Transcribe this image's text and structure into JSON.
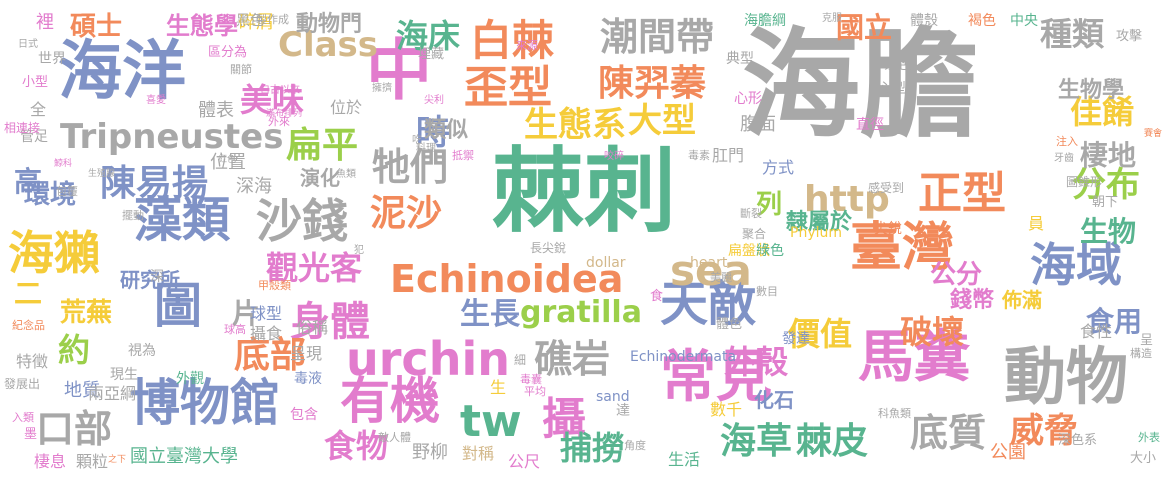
{
  "palette": {
    "gray": "#a8a8a8",
    "teal": "#58b48f",
    "pink": "#e27ccd",
    "blue": "#7f92c6",
    "orange": "#f28a5b",
    "green": "#9bcf4a",
    "yellow": "#f5cc3a",
    "tan": "#d3b88a"
  },
  "words": [
    {
      "text": "海膽",
      "size": 118,
      "color": "gray"
    },
    {
      "text": "棘刺",
      "size": 92,
      "color": "teal"
    },
    {
      "text": "海洋",
      "size": 64,
      "color": "blue"
    },
    {
      "text": "中",
      "size": 66,
      "color": "pink"
    },
    {
      "text": "臺灣",
      "size": 52,
      "color": "orange"
    },
    {
      "text": "動物",
      "size": 62,
      "color": "gray"
    },
    {
      "text": "馬糞",
      "size": 56,
      "color": "pink"
    },
    {
      "text": "常見",
      "size": 56,
      "color": "pink"
    },
    {
      "text": "博物館",
      "size": 50,
      "color": "blue"
    },
    {
      "text": "有機",
      "size": 50,
      "color": "pink"
    },
    {
      "text": "urchin",
      "size": 46,
      "color": "pink"
    },
    {
      "text": "藻類",
      "size": 48,
      "color": "blue"
    },
    {
      "text": "海獺",
      "size": 46,
      "color": "yellow"
    },
    {
      "text": "沙錢",
      "size": 46,
      "color": "gray"
    },
    {
      "text": "圖",
      "size": 48,
      "color": "blue"
    },
    {
      "text": "天敵",
      "size": 48,
      "color": "blue"
    },
    {
      "text": "海域",
      "size": 46,
      "color": "blue"
    },
    {
      "text": "正型",
      "size": 44,
      "color": "orange"
    },
    {
      "text": "歪型",
      "size": 44,
      "color": "orange"
    },
    {
      "text": "白棘",
      "size": 42,
      "color": "orange"
    },
    {
      "text": "tw",
      "size": 44,
      "color": "teal"
    },
    {
      "text": "攝",
      "size": 44,
      "color": "pink"
    },
    {
      "text": "sea",
      "size": 42,
      "color": "tan"
    },
    {
      "text": "Echinoidea",
      "size": 38,
      "color": "orange"
    },
    {
      "text": "潮間帶",
      "size": 38,
      "color": "gray"
    },
    {
      "text": "http",
      "size": 36,
      "color": "tan"
    },
    {
      "text": "陳羿蓁",
      "size": 36,
      "color": "orange"
    },
    {
      "text": "陳易揚",
      "size": 36,
      "color": "blue"
    },
    {
      "text": "身體",
      "size": 40,
      "color": "pink"
    },
    {
      "text": "Tripneustes",
      "size": 34,
      "color": "gray"
    },
    {
      "text": "Class",
      "size": 34,
      "color": "tan"
    },
    {
      "text": "扁平",
      "size": 36,
      "color": "green"
    },
    {
      "text": "底部",
      "size": 36,
      "color": "orange"
    },
    {
      "text": "泥沙",
      "size": 36,
      "color": "orange"
    },
    {
      "text": "生態系",
      "size": 34,
      "color": "yellow"
    },
    {
      "text": "大型",
      "size": 34,
      "color": "yellow"
    },
    {
      "text": "牠們",
      "size": 38,
      "color": "gray"
    },
    {
      "text": "礁岩",
      "size": 38,
      "color": "gray"
    },
    {
      "text": "底質",
      "size": 38,
      "color": "gray"
    },
    {
      "text": "海草",
      "size": 36,
      "color": "teal"
    },
    {
      "text": "棘皮",
      "size": 36,
      "color": "teal"
    },
    {
      "text": "威脅",
      "size": 34,
      "color": "orange"
    },
    {
      "text": "分布",
      "size": 34,
      "color": "green"
    },
    {
      "text": "口部",
      "size": 38,
      "color": "gray"
    },
    {
      "text": "gratilla",
      "size": 30,
      "color": "green"
    },
    {
      "text": "美味",
      "size": 32,
      "color": "pink"
    },
    {
      "text": "海床",
      "size": 32,
      "color": "teal"
    },
    {
      "text": "種類",
      "size": 32,
      "color": "gray"
    },
    {
      "text": "佳餚",
      "size": 32,
      "color": "yellow"
    },
    {
      "text": "時",
      "size": 34,
      "color": "blue"
    },
    {
      "text": "食物",
      "size": 32,
      "color": "pink"
    },
    {
      "text": "捕撈",
      "size": 32,
      "color": "teal"
    },
    {
      "text": "觀光客",
      "size": 32,
      "color": "pink"
    },
    {
      "text": "價值",
      "size": 32,
      "color": "yellow"
    },
    {
      "text": "破壞",
      "size": 32,
      "color": "orange"
    },
    {
      "text": "外殼",
      "size": 32,
      "color": "pink"
    },
    {
      "text": "生長",
      "size": 30,
      "color": "blue"
    },
    {
      "text": "國立",
      "size": 28,
      "color": "orange"
    },
    {
      "text": "生物學",
      "size": 22,
      "color": "gray"
    },
    {
      "text": "棲地",
      "size": 28,
      "color": "gray"
    },
    {
      "text": "生物",
      "size": 28,
      "color": "teal"
    },
    {
      "text": "食用",
      "size": 28,
      "color": "blue"
    },
    {
      "text": "碩士",
      "size": 26,
      "color": "orange"
    },
    {
      "text": "生態學",
      "size": 24,
      "color": "pink"
    },
    {
      "text": "動物門",
      "size": 22,
      "color": "gray"
    },
    {
      "text": "公分",
      "size": 26,
      "color": "pink"
    },
    {
      "text": "環境",
      "size": 26,
      "color": "blue"
    },
    {
      "text": "荒蕪",
      "size": 26,
      "color": "yellow"
    },
    {
      "text": "約",
      "size": 32,
      "color": "green"
    },
    {
      "text": "片",
      "size": 28,
      "color": "gray"
    },
    {
      "text": "類似",
      "size": 22,
      "color": "gray"
    },
    {
      "text": "隸屬於",
      "size": 22,
      "color": "teal"
    },
    {
      "text": "列",
      "size": 26,
      "color": "green"
    },
    {
      "text": "錢幣",
      "size": 22,
      "color": "pink"
    },
    {
      "text": "佈滿",
      "size": 20,
      "color": "yellow"
    },
    {
      "text": "二",
      "size": 28,
      "color": "yellow"
    },
    {
      "text": "高",
      "size": 28,
      "color": "blue"
    },
    {
      "text": "研究所",
      "size": 20,
      "color": "blue"
    },
    {
      "text": "演化",
      "size": 20,
      "color": "gray"
    },
    {
      "text": "深海",
      "size": 18,
      "color": "gray"
    },
    {
      "text": "位置",
      "size": 18,
      "color": "gray"
    },
    {
      "text": "球型",
      "size": 16,
      "color": "blue"
    },
    {
      "text": "攝食",
      "size": 16,
      "color": "gray"
    },
    {
      "text": "碎屑",
      "size": 18,
      "color": "yellow"
    },
    {
      "text": "體表",
      "size": 18,
      "color": "gray"
    },
    {
      "text": "腹面",
      "size": 18,
      "color": "gray"
    },
    {
      "text": "肛門",
      "size": 16,
      "color": "gray"
    },
    {
      "text": "方式",
      "size": 16,
      "color": "blue"
    },
    {
      "text": "直徑",
      "size": 14,
      "color": "pink"
    },
    {
      "text": "化石",
      "size": 20,
      "color": "blue"
    },
    {
      "text": "數千",
      "size": 16,
      "color": "yellow"
    },
    {
      "text": "公園",
      "size": 18,
      "color": "orange"
    },
    {
      "text": "對稱",
      "size": 16,
      "color": "tan"
    },
    {
      "text": "野柳",
      "size": 18,
      "color": "gray"
    },
    {
      "text": "公尺",
      "size": 16,
      "color": "pink"
    },
    {
      "text": "生活",
      "size": 16,
      "color": "teal"
    },
    {
      "text": "國立臺灣大學",
      "size": 18,
      "color": "teal"
    },
    {
      "text": "地質",
      "size": 18,
      "color": "blue"
    },
    {
      "text": "兩亞綱",
      "size": 16,
      "color": "gray"
    },
    {
      "text": "顆粒",
      "size": 16,
      "color": "gray"
    },
    {
      "text": "棲息",
      "size": 16,
      "color": "pink"
    },
    {
      "text": "裡",
      "size": 18,
      "color": "pink"
    },
    {
      "text": "世界",
      "size": 14,
      "color": "gray"
    },
    {
      "text": "小型",
      "size": 13,
      "color": "pink"
    },
    {
      "text": "管足",
      "size": 14,
      "color": "gray"
    },
    {
      "text": "全",
      "size": 16,
      "color": "gray"
    },
    {
      "text": "相連接",
      "size": 12,
      "color": "pink"
    },
    {
      "text": "特徵",
      "size": 16,
      "color": "gray"
    },
    {
      "text": "發展出",
      "size": 12,
      "color": "gray"
    },
    {
      "text": "紀念品",
      "size": 11,
      "color": "orange"
    },
    {
      "text": "墨",
      "size": 13,
      "color": "pink"
    },
    {
      "text": "入類",
      "size": 11,
      "color": "pink"
    },
    {
      "text": "黑色",
      "size": 14,
      "color": "gray"
    },
    {
      "text": "區分為",
      "size": 13,
      "color": "pink"
    },
    {
      "text": "埋藏",
      "size": 13,
      "color": "gray"
    },
    {
      "text": "來源",
      "size": 11,
      "color": "pink"
    },
    {
      "text": "製作成",
      "size": 11,
      "color": "gray"
    },
    {
      "text": "海膽綱",
      "size": 14,
      "color": "teal"
    },
    {
      "text": "克服",
      "size": 10,
      "color": "gray"
    },
    {
      "text": "體殼",
      "size": 14,
      "color": "gray"
    },
    {
      "text": "褐色",
      "size": 14,
      "color": "orange"
    },
    {
      "text": "中央",
      "size": 14,
      "color": "teal"
    },
    {
      "text": "攻擊",
      "size": 13,
      "color": "gray"
    },
    {
      "text": "典型",
      "size": 14,
      "color": "gray"
    },
    {
      "text": "紫色",
      "size": 14,
      "color": "gray"
    },
    {
      "text": "心型",
      "size": 14,
      "color": "gray"
    },
    {
      "text": "心形",
      "size": 14,
      "color": "pink"
    },
    {
      "text": "注入",
      "size": 11,
      "color": "orange"
    },
    {
      "text": "牙齒",
      "size": 10,
      "color": "gray"
    },
    {
      "text": "圖錐形",
      "size": 12,
      "color": "gray"
    },
    {
      "text": "朝下",
      "size": 13,
      "color": "gray"
    },
    {
      "text": "感受到",
      "size": 12,
      "color": "gray"
    },
    {
      "text": "斷裂",
      "size": 11,
      "color": "gray"
    },
    {
      "text": "聚合",
      "size": 12,
      "color": "gray"
    },
    {
      "text": "尖銳",
      "size": 14,
      "color": "orange"
    },
    {
      "text": "扁盤狀",
      "size": 14,
      "color": "yellow"
    },
    {
      "text": "綠色",
      "size": 14,
      "color": "teal"
    },
    {
      "text": "Phylum",
      "size": 14,
      "color": "yellow"
    },
    {
      "text": "員",
      "size": 16,
      "color": "yellow"
    },
    {
      "text": "heart",
      "size": 14,
      "color": "tan"
    },
    {
      "text": "dollar",
      "size": 14,
      "color": "tan"
    },
    {
      "text": "長尖銳",
      "size": 12,
      "color": "gray"
    },
    {
      "text": "食",
      "size": 13,
      "color": "pink"
    },
    {
      "text": "美麗",
      "size": 11,
      "color": "gray"
    },
    {
      "text": "數目",
      "size": 11,
      "color": "gray"
    },
    {
      "text": "食性",
      "size": 16,
      "color": "gray"
    },
    {
      "text": "呈",
      "size": 13,
      "color": "gray"
    },
    {
      "text": "構造",
      "size": 11,
      "color": "gray"
    },
    {
      "text": "發達",
      "size": 14,
      "color": "blue"
    },
    {
      "text": "Echinodermata",
      "size": 14,
      "color": "blue"
    },
    {
      "text": "體色",
      "size": 13,
      "color": "gray"
    },
    {
      "text": "細",
      "size": 12,
      "color": "gray"
    },
    {
      "text": "sand",
      "size": 14,
      "color": "blue"
    },
    {
      "text": "達",
      "size": 14,
      "color": "gray"
    },
    {
      "text": "科魚類",
      "size": 11,
      "color": "gray"
    },
    {
      "text": "外表",
      "size": 11,
      "color": "teal"
    },
    {
      "text": "深色系",
      "size": 13,
      "color": "gray"
    },
    {
      "text": "大小",
      "size": 13,
      "color": "gray"
    },
    {
      "text": "角度",
      "size": 11,
      "color": "gray"
    },
    {
      "text": "毒囊",
      "size": 11,
      "color": "pink"
    },
    {
      "text": "平均",
      "size": 11,
      "color": "pink"
    },
    {
      "text": "生",
      "size": 16,
      "color": "yellow"
    },
    {
      "text": "包含",
      "size": 14,
      "color": "pink"
    },
    {
      "text": "敵人體",
      "size": 11,
      "color": "gray"
    },
    {
      "text": "毒液",
      "size": 14,
      "color": "blue"
    },
    {
      "text": "呈現",
      "size": 16,
      "color": "gray"
    },
    {
      "text": "俗稱",
      "size": 16,
      "color": "gray"
    },
    {
      "text": "外觀",
      "size": 14,
      "color": "teal"
    },
    {
      "text": "現生",
      "size": 14,
      "color": "gray"
    },
    {
      "text": "視為",
      "size": 14,
      "color": "gray"
    },
    {
      "text": "球高",
      "size": 11,
      "color": "pink"
    },
    {
      "text": "甲殼類",
      "size": 11,
      "color": "orange"
    },
    {
      "text": "深",
      "size": 14,
      "color": "gray"
    },
    {
      "text": "擺動",
      "size": 11,
      "color": "gray"
    },
    {
      "text": "包覆",
      "size": 11,
      "color": "gray"
    },
    {
      "text": "魚類",
      "size": 10,
      "color": "gray"
    },
    {
      "text": "犯",
      "size": 10,
      "color": "gray"
    },
    {
      "text": "料理",
      "size": 10,
      "color": "gray"
    },
    {
      "text": "抵禦",
      "size": 11,
      "color": "pink"
    },
    {
      "text": "咬碎",
      "size": 10,
      "color": "pink"
    },
    {
      "text": "毒素",
      "size": 11,
      "color": "gray"
    },
    {
      "text": "吃",
      "size": 10,
      "color": "gray"
    },
    {
      "text": "尖利",
      "size": 10,
      "color": "pink"
    },
    {
      "text": "擁擠",
      "size": 10,
      "color": "gray"
    },
    {
      "text": "外來",
      "size": 11,
      "color": "pink"
    },
    {
      "text": "自古以來",
      "size": 10,
      "color": "pink"
    },
    {
      "text": "滿布排列",
      "size": 9,
      "color": "pink"
    },
    {
      "text": "喜愛",
      "size": 10,
      "color": "pink"
    },
    {
      "text": "關節",
      "size": 11,
      "color": "gray"
    },
    {
      "text": "日式",
      "size": 10,
      "color": "gray"
    },
    {
      "text": "紅色",
      "size": 9,
      "color": "gray"
    },
    {
      "text": "鯨科",
      "size": 9,
      "color": "pink"
    },
    {
      "text": "生殖腺",
      "size": 9,
      "color": "gray"
    },
    {
      "text": "位於",
      "size": 16,
      "color": "gray"
    },
    {
      "text": "賽會",
      "size": 9,
      "color": "orange"
    },
    {
      "text": "之下",
      "size": 9,
      "color": "orange"
    }
  ]
}
